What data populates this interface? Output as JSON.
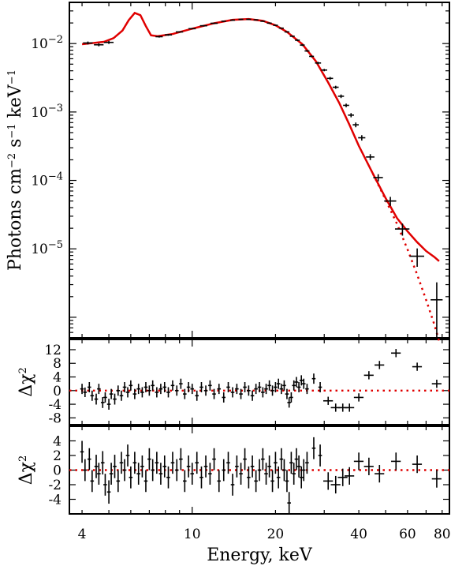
{
  "chart_data": [
    {
      "type": "line",
      "panel": "spectrum",
      "title": "",
      "xlabel": "Energy, keV",
      "ylabel": "Photons cm−2 s−1 keV−1",
      "ylabel_parts": {
        "base": "Photons cm",
        "exp1": "−2",
        "s": " s",
        "exp2": "−1",
        "kev": " keV",
        "exp3": "−1"
      },
      "x_scale": "log",
      "y_scale": "log",
      "xlim": [
        3.6,
        85
      ],
      "ylim": [
        5e-07,
        0.04
      ],
      "y_ticks": [
        {
          "value": 0.01,
          "base": "10",
          "exp": "−2"
        },
        {
          "value": 0.001,
          "base": "10",
          "exp": "−3"
        },
        {
          "value": 0.0001,
          "base": "10",
          "exp": "−4"
        },
        {
          "value": 1e-05,
          "base": "10",
          "exp": "−5"
        }
      ],
      "colors": {
        "model": "#e00000",
        "data": "#000000"
      },
      "grid": false,
      "legend": "none",
      "series": [
        {
          "style": "solid-red",
          "x": [
            4.0,
            4.4,
            4.8,
            5.2,
            5.6,
            5.9,
            6.2,
            6.5,
            6.8,
            7.1,
            7.5,
            8.5,
            10,
            12,
            14,
            16,
            18,
            20,
            22,
            25,
            28,
            31,
            34,
            37,
            40,
            45,
            50,
            55,
            60,
            65,
            70,
            75,
            78
          ],
          "y": [
            0.0098,
            0.0102,
            0.0106,
            0.012,
            0.0155,
            0.022,
            0.028,
            0.026,
            0.018,
            0.0132,
            0.0128,
            0.0138,
            0.0165,
            0.0198,
            0.0222,
            0.0228,
            0.0215,
            0.0185,
            0.0148,
            0.0098,
            0.0055,
            0.0027,
            0.00135,
            0.00065,
            0.00032,
            0.000125,
            5.5e-05,
            2.8e-05,
            1.8e-05,
            1.25e-05,
            9.3e-06,
            7.6e-06,
            6.6e-06
          ]
        },
        {
          "style": "dotted-red",
          "x": [
            45,
            50,
            55,
            60,
            65,
            70,
            75,
            78
          ],
          "y": [
            0.000125,
            5.2e-05,
            2.3e-05,
            9.8e-06,
            4.2e-06,
            1.8e-06,
            7.8e-07,
            4.5e-07
          ]
        },
        {
          "style": "data-crosses",
          "x": [
            4.2,
            4.6,
            5.0,
            7.6,
            8.2,
            9.0,
            10.0,
            11.0,
            12.0,
            13.0,
            14.0,
            15.0,
            16.0,
            17.0,
            18.0,
            19.0,
            20.0,
            21.0,
            22.0,
            23.0,
            24.0,
            25.0,
            26.0,
            27.0,
            28.5,
            30.0,
            31.5,
            33.0,
            34.5,
            36.0,
            37.5,
            39.0,
            41.0,
            44.0,
            47.0,
            52.0,
            57.5,
            65.0,
            76.5
          ],
          "y": [
            0.0102,
            0.0096,
            0.0104,
            0.0126,
            0.0134,
            0.0148,
            0.0165,
            0.0182,
            0.0198,
            0.0212,
            0.022,
            0.0226,
            0.0226,
            0.0222,
            0.0212,
            0.0199,
            0.0185,
            0.0168,
            0.0148,
            0.0128,
            0.0112,
            0.0095,
            0.0078,
            0.0065,
            0.0052,
            0.0041,
            0.0031,
            0.0023,
            0.0017,
            0.00125,
            0.0009,
            0.00065,
            0.00042,
            0.00022,
            0.00011,
            5e-05,
            1.95e-05,
            7.8e-06,
            1.8e-06
          ],
          "xerr_frac": [
            0.04,
            0.04,
            0.04,
            0.03,
            0.03,
            0.03,
            0.03,
            0.03,
            0.03,
            0.02,
            0.02,
            0.02,
            0.02,
            0.02,
            0.02,
            0.02,
            0.02,
            0.02,
            0.02,
            0.02,
            0.02,
            0.02,
            0.02,
            0.02,
            0.025,
            0.025,
            0.025,
            0.025,
            0.025,
            0.025,
            0.025,
            0.025,
            0.03,
            0.035,
            0.04,
            0.05,
            0.06,
            0.06,
            0.05
          ],
          "yerr_frac": [
            0.05,
            0.05,
            0.05,
            0.03,
            0.03,
            0.02,
            0.02,
            0.02,
            0.02,
            0.02,
            0.02,
            0.02,
            0.02,
            0.02,
            0.02,
            0.02,
            0.02,
            0.02,
            0.02,
            0.02,
            0.03,
            0.03,
            0.03,
            0.03,
            0.04,
            0.04,
            0.05,
            0.05,
            0.06,
            0.06,
            0.07,
            0.08,
            0.09,
            0.1,
            0.12,
            0.15,
            0.2,
            0.3,
            0.8
          ]
        }
      ]
    },
    {
      "type": "scatter",
      "panel": "residuals-1",
      "ylabel": "Δχ2",
      "ylabel_parts": {
        "base": "Δχ",
        "exp": "2"
      },
      "x_scale": "log",
      "xlim": [
        3.6,
        85
      ],
      "ylim": [
        -10,
        15
      ],
      "y_ticks": [
        12,
        8,
        4,
        0,
        -4,
        -8
      ],
      "zero_line": "dotted-red",
      "points": [
        [
          4.0,
          0.5,
          1.5
        ],
        [
          4.1,
          -0.5,
          1.4
        ],
        [
          4.25,
          1.0,
          1.5
        ],
        [
          4.35,
          -1.5,
          1.5
        ],
        [
          4.5,
          -2.5,
          1.6
        ],
        [
          4.6,
          0.5,
          1.5
        ],
        [
          4.75,
          -3.5,
          1.6
        ],
        [
          4.85,
          -2.0,
          1.5
        ],
        [
          5.0,
          -4.0,
          1.6
        ],
        [
          5.1,
          -1.0,
          1.5
        ],
        [
          5.25,
          -2.5,
          1.6
        ],
        [
          5.4,
          0.0,
          1.5
        ],
        [
          5.55,
          -1.5,
          1.5
        ],
        [
          5.7,
          1.0,
          1.5
        ],
        [
          5.85,
          -0.5,
          1.5
        ],
        [
          6.0,
          1.5,
          1.5
        ],
        [
          6.2,
          -1.0,
          1.5
        ],
        [
          6.4,
          0.5,
          1.5
        ],
        [
          6.6,
          -0.5,
          1.5
        ],
        [
          6.8,
          1.0,
          1.5
        ],
        [
          7.0,
          0.0,
          1.5
        ],
        [
          7.2,
          1.5,
          1.5
        ],
        [
          7.45,
          -0.5,
          1.5
        ],
        [
          7.7,
          0.5,
          1.5
        ],
        [
          7.95,
          1.0,
          1.5
        ],
        [
          8.2,
          -0.5,
          1.5
        ],
        [
          8.5,
          1.5,
          1.5
        ],
        [
          8.8,
          0.0,
          1.5
        ],
        [
          9.1,
          2.0,
          1.5
        ],
        [
          9.4,
          -1.0,
          1.5
        ],
        [
          9.7,
          1.0,
          1.5
        ],
        [
          10.0,
          0.5,
          1.5
        ],
        [
          10.4,
          -1.5,
          1.5
        ],
        [
          10.8,
          1.0,
          1.5
        ],
        [
          11.2,
          0.0,
          1.5
        ],
        [
          11.6,
          1.5,
          1.5
        ],
        [
          12.0,
          -1.0,
          1.5
        ],
        [
          12.5,
          0.5,
          1.5
        ],
        [
          13.0,
          -2.0,
          1.5
        ],
        [
          13.5,
          1.0,
          1.5
        ],
        [
          14.0,
          -0.5,
          1.5
        ],
        [
          14.5,
          0.5,
          1.5
        ],
        [
          15.0,
          -1.0,
          1.5
        ],
        [
          15.5,
          1.0,
          1.5
        ],
        [
          16.0,
          0.0,
          1.5
        ],
        [
          16.5,
          -1.5,
          1.5
        ],
        [
          17.0,
          0.5,
          1.5
        ],
        [
          17.5,
          1.0,
          1.5
        ],
        [
          18.0,
          -0.5,
          1.5
        ],
        [
          18.5,
          0.5,
          1.5
        ],
        [
          19.0,
          1.5,
          1.5
        ],
        [
          19.5,
          0.0,
          1.5
        ],
        [
          20.0,
          1.0,
          1.5
        ],
        [
          20.5,
          2.0,
          1.5
        ],
        [
          21.0,
          0.5,
          1.5
        ],
        [
          21.5,
          1.5,
          1.5
        ],
        [
          22.0,
          -1.0,
          1.5
        ],
        [
          22.4,
          -3.5,
          1.5
        ],
        [
          22.8,
          -2.0,
          1.5
        ],
        [
          23.3,
          1.5,
          1.5
        ],
        [
          23.8,
          2.5,
          1.5
        ],
        [
          24.3,
          1.0,
          1.5
        ],
        [
          24.8,
          3.0,
          1.5
        ],
        [
          25.3,
          2.0,
          1.5
        ],
        [
          26.0,
          0.5,
          1.5
        ],
        [
          27.5,
          3.5,
          1.5
        ],
        [
          29.0,
          1.0,
          1.5
        ],
        [
          31.0,
          -3.0,
          1.2
        ],
        [
          33.0,
          -5.0,
          1.2
        ],
        [
          35.0,
          -5.0,
          1.2
        ],
        [
          37.0,
          -5.0,
          1.2
        ],
        [
          40.0,
          -2.0,
          1.2
        ],
        [
          43.5,
          4.5,
          1.2
        ],
        [
          47.5,
          7.5,
          1.2
        ],
        [
          54.5,
          11.0,
          1.2
        ],
        [
          65.0,
          7.0,
          1.2
        ],
        [
          76.5,
          2.0,
          1.2
        ]
      ]
    },
    {
      "type": "scatter",
      "panel": "residuals-2",
      "ylabel": "Δχ2",
      "ylabel_parts": {
        "base": "Δχ",
        "exp": "2"
      },
      "x_scale": "log",
      "xlim": [
        3.6,
        85
      ],
      "ylim": [
        -6,
        6
      ],
      "y_ticks": [
        4,
        2,
        0,
        -2,
        -4
      ],
      "x_ticks": [
        4,
        10,
        20,
        40,
        60,
        80
      ],
      "zero_line": "dotted-red",
      "points": [
        [
          4.0,
          2.5,
          1.5
        ],
        [
          4.1,
          0.0,
          1.5
        ],
        [
          4.25,
          1.5,
          1.5
        ],
        [
          4.35,
          -1.5,
          1.5
        ],
        [
          4.5,
          0.5,
          1.6
        ],
        [
          4.6,
          -0.5,
          1.5
        ],
        [
          4.75,
          1.0,
          1.6
        ],
        [
          4.85,
          -2.0,
          1.5
        ],
        [
          5.0,
          -3.0,
          1.6
        ],
        [
          5.1,
          -0.5,
          1.5
        ],
        [
          5.25,
          0.5,
          1.6
        ],
        [
          5.4,
          -1.5,
          1.5
        ],
        [
          5.55,
          1.0,
          1.5
        ],
        [
          5.7,
          0.0,
          1.5
        ],
        [
          5.85,
          2.0,
          1.5
        ],
        [
          6.0,
          -1.0,
          1.5
        ],
        [
          6.2,
          1.0,
          1.5
        ],
        [
          6.4,
          -0.5,
          1.5
        ],
        [
          6.6,
          0.5,
          1.5
        ],
        [
          6.8,
          -1.5,
          1.5
        ],
        [
          7.0,
          1.5,
          1.5
        ],
        [
          7.2,
          0.0,
          1.5
        ],
        [
          7.45,
          1.0,
          1.5
        ],
        [
          7.7,
          -0.5,
          1.5
        ],
        [
          7.95,
          0.5,
          1.5
        ],
        [
          8.2,
          -1.0,
          1.5
        ],
        [
          8.5,
          1.0,
          1.5
        ],
        [
          8.8,
          0.0,
          1.5
        ],
        [
          9.1,
          1.5,
          1.5
        ],
        [
          9.4,
          -1.5,
          1.5
        ],
        [
          9.7,
          0.5,
          1.5
        ],
        [
          10.0,
          -0.5,
          1.5
        ],
        [
          10.4,
          1.0,
          1.5
        ],
        [
          10.8,
          -1.0,
          1.5
        ],
        [
          11.2,
          0.5,
          1.5
        ],
        [
          11.6,
          -0.5,
          1.5
        ],
        [
          12.0,
          1.5,
          1.5
        ],
        [
          12.5,
          -1.5,
          1.5
        ],
        [
          13.0,
          0.0,
          1.5
        ],
        [
          13.5,
          1.0,
          1.5
        ],
        [
          14.0,
          -2.0,
          1.5
        ],
        [
          14.5,
          0.5,
          1.5
        ],
        [
          15.0,
          -0.5,
          1.5
        ],
        [
          15.5,
          1.5,
          1.5
        ],
        [
          16.0,
          -1.0,
          1.5
        ],
        [
          16.5,
          0.5,
          1.5
        ],
        [
          17.0,
          -1.5,
          1.5
        ],
        [
          17.5,
          0.0,
          1.5
        ],
        [
          18.0,
          1.5,
          1.5
        ],
        [
          18.5,
          -0.5,
          1.5
        ],
        [
          19.0,
          0.5,
          1.5
        ],
        [
          19.5,
          -1.5,
          1.5
        ],
        [
          20.0,
          1.0,
          1.5
        ],
        [
          20.5,
          -1.0,
          1.5
        ],
        [
          21.0,
          1.5,
          1.5
        ],
        [
          21.5,
          0.0,
          1.5
        ],
        [
          22.0,
          -1.5,
          1.5
        ],
        [
          22.4,
          -4.5,
          1.5
        ],
        [
          22.8,
          1.0,
          1.5
        ],
        [
          23.3,
          -0.5,
          1.5
        ],
        [
          23.8,
          1.5,
          1.5
        ],
        [
          24.3,
          0.5,
          1.5
        ],
        [
          24.8,
          -1.0,
          1.5
        ],
        [
          25.3,
          0.0,
          1.5
        ],
        [
          26.0,
          1.0,
          1.5
        ],
        [
          27.5,
          3.0,
          1.5
        ],
        [
          29.0,
          2.0,
          1.5
        ],
        [
          31.0,
          -1.5,
          1.2
        ],
        [
          33.0,
          -2.0,
          1.2
        ],
        [
          35.0,
          -1.0,
          1.2
        ],
        [
          37.0,
          -0.8,
          1.2
        ],
        [
          40.0,
          1.2,
          1.2
        ],
        [
          43.5,
          0.5,
          1.2
        ],
        [
          47.5,
          -0.5,
          1.2
        ],
        [
          54.5,
          1.2,
          1.2
        ],
        [
          65.0,
          0.8,
          1.2
        ],
        [
          76.5,
          -1.2,
          1.2
        ]
      ]
    }
  ]
}
